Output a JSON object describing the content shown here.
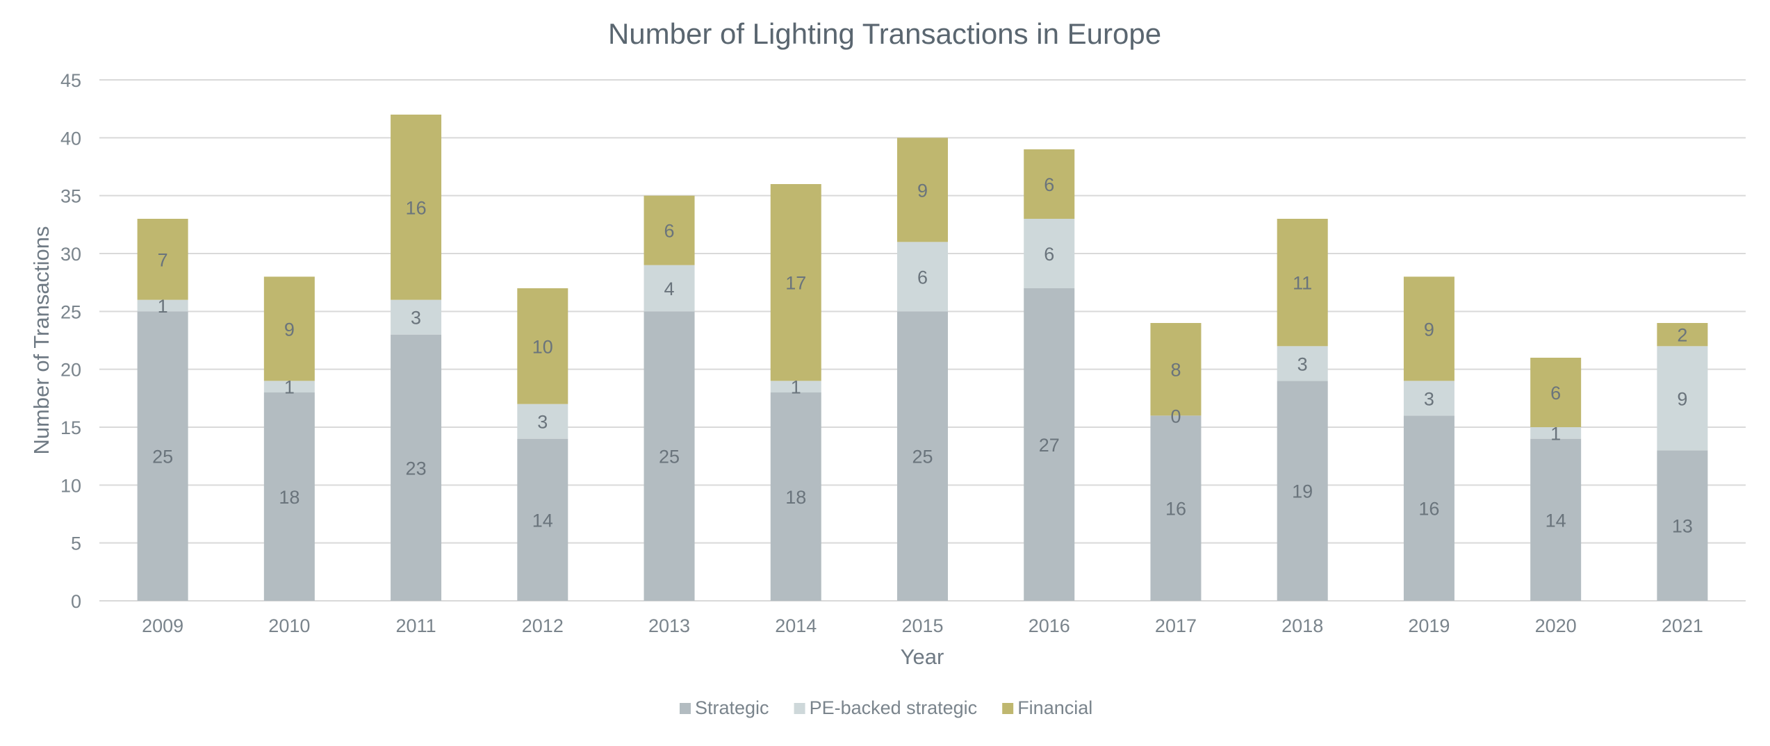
{
  "chart_data": {
    "type": "bar",
    "stacked": true,
    "title": "Number of Lighting Transactions in Europe",
    "xlabel": "Year",
    "ylabel": "Number of Transactions",
    "ylim": [
      0,
      45
    ],
    "yticks": [
      0,
      5,
      10,
      15,
      20,
      25,
      30,
      35,
      40,
      45
    ],
    "grid": true,
    "legend_position": "bottom",
    "categories": [
      "2009",
      "2010",
      "2011",
      "2012",
      "2013",
      "2014",
      "2015",
      "2016",
      "2017",
      "2018",
      "2019",
      "2020",
      "2021"
    ],
    "series": [
      {
        "name": "Strategic",
        "color": "#b3bcc1",
        "values": [
          25,
          18,
          23,
          14,
          25,
          18,
          25,
          27,
          16,
          19,
          16,
          14,
          13
        ]
      },
      {
        "name": "PE-backed strategic",
        "color": "#ced8da",
        "values": [
          1,
          1,
          3,
          3,
          4,
          1,
          6,
          6,
          0,
          3,
          3,
          1,
          9
        ]
      },
      {
        "name": "Financial",
        "color": "#bfb76f",
        "values": [
          7,
          9,
          16,
          10,
          6,
          17,
          9,
          6,
          8,
          11,
          9,
          6,
          2
        ]
      }
    ]
  }
}
